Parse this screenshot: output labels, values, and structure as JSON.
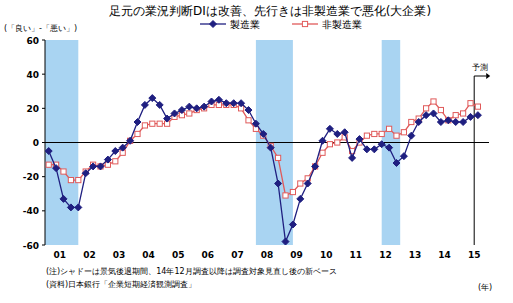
{
  "chart_data": {
    "type": "line",
    "title": "足元の業況判断DIは改善、先行きは非製造業で悪化(大企業)",
    "y_label": "(「良い」-「悪い」)",
    "x_label": "(年)",
    "annotation": "予測",
    "notes": [
      "(注)シャドーは景気後退期間、14年12月調査以降は調査対象見直し後の新ベース",
      "(資料)日本銀行「企業短期経済観測調査」"
    ],
    "categories": [
      "01",
      null,
      null,
      null,
      "02",
      null,
      null,
      null,
      "03",
      null,
      null,
      null,
      "04",
      null,
      null,
      null,
      "05",
      null,
      null,
      null,
      "06",
      null,
      null,
      null,
      "07",
      null,
      null,
      null,
      "08",
      null,
      null,
      null,
      "09",
      null,
      null,
      null,
      "10",
      null,
      null,
      null,
      "11",
      null,
      null,
      null,
      "12",
      null,
      null,
      null,
      "13",
      null,
      null,
      null,
      "14",
      null,
      null,
      null,
      "15",
      null,
      null
    ],
    "xlim": [
      -0.5,
      59.5
    ],
    "recessions": [
      [
        -0.5,
        4
      ],
      [
        28,
        33
      ],
      [
        45,
        47.5
      ]
    ],
    "series": [
      {
        "name": "製造業",
        "color": "#1f1f80",
        "marker": "diamond",
        "line_style": "solid",
        "values": [
          -5,
          -15,
          -33,
          -38,
          -38,
          -18,
          -14,
          -14,
          -10,
          -5,
          -3,
          1,
          12,
          22,
          26,
          22,
          14,
          17,
          19,
          21,
          20,
          21,
          24,
          25,
          23,
          23,
          23,
          19,
          11,
          5,
          -3,
          -24,
          -58,
          -48,
          -33,
          -24,
          -14,
          1,
          8,
          5,
          6,
          -9,
          2,
          -4,
          -4,
          -1,
          -3,
          -12,
          -8,
          4,
          12,
          16,
          17,
          12,
          13,
          12,
          12,
          15,
          16
        ]
      },
      {
        "name": "非製造業",
        "color": "#e05a5a",
        "marker": "square-open",
        "line_style": "solid",
        "values": [
          -13,
          -13,
          -17,
          -22,
          -22,
          -17,
          -13,
          -14,
          -13,
          -11,
          -6,
          1,
          5,
          10,
          11,
          11,
          11,
          15,
          16,
          17,
          19,
          20,
          22,
          22,
          22,
          22,
          20,
          13,
          8,
          4,
          -2,
          -9,
          -31,
          -29,
          -24,
          -21,
          -14,
          -6,
          -1,
          0,
          3,
          -5,
          0,
          4,
          5,
          5,
          8,
          4,
          6,
          12,
          14,
          20,
          24,
          19,
          13,
          16,
          17,
          23,
          21
        ]
      }
    ],
    "ylim": [
      -60,
      60
    ],
    "yticks": [
      -60,
      -40,
      -20,
      0,
      20,
      40,
      60
    ],
    "grid": false,
    "legend": "top"
  }
}
